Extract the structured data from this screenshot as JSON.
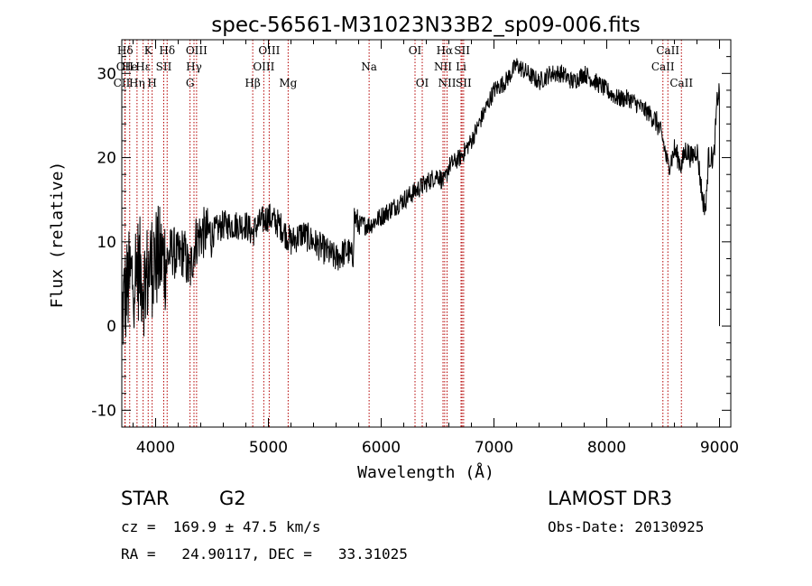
{
  "chart_data": {
    "type": "line",
    "title": "spec-56561-M31023N33B2_sp09-006.fits",
    "xlabel": "Wavelength (Å)",
    "ylabel": "Flux (relative)",
    "xlim": [
      3700,
      9100
    ],
    "ylim": [
      -12,
      34
    ],
    "xticks": [
      4000,
      5000,
      6000,
      7000,
      8000,
      9000
    ],
    "yticks": [
      -10,
      0,
      10,
      20,
      30
    ],
    "spectrum_anchors": {
      "x": [
        3700,
        3720,
        3760,
        3800,
        3850,
        3900,
        3950,
        4000,
        4050,
        4100,
        4150,
        4200,
        4250,
        4300,
        4350,
        4400,
        4500,
        4600,
        4700,
        4800,
        4860,
        4900,
        5000,
        5100,
        5200,
        5300,
        5400,
        5500,
        5600,
        5700,
        5750,
        5760,
        5800,
        5900,
        6000,
        6100,
        6200,
        6300,
        6400,
        6500,
        6560,
        6600,
        6700,
        6800,
        6900,
        7000,
        7100,
        7200,
        7300,
        7400,
        7500,
        7600,
        7700,
        7800,
        7900,
        8000,
        8100,
        8200,
        8300,
        8400,
        8450,
        8500,
        8542,
        8580,
        8600,
        8662,
        8700,
        8750,
        8800,
        8850,
        8880,
        8900,
        8950,
        8980,
        9000
      ],
      "y": [
        1,
        3,
        5,
        6,
        7,
        5,
        7,
        8,
        8,
        8,
        9,
        8,
        9,
        6,
        10,
        11,
        11,
        12,
        12,
        12,
        11,
        12,
        13,
        12,
        10,
        11,
        10,
        9,
        8,
        9,
        8,
        13,
        12,
        12,
        13,
        14,
        15,
        16,
        17,
        18,
        17,
        19,
        20,
        22,
        25,
        28,
        29,
        31,
        30,
        29,
        30,
        30,
        29,
        30,
        29,
        28,
        27,
        27,
        26,
        25,
        24,
        22,
        19,
        20,
        21,
        19,
        21,
        20,
        21,
        15,
        14,
        20,
        20,
        27,
        28
      ]
    },
    "spectral_lines": [
      {
        "label": "Hδ",
        "wavelength": 3730,
        "row": 0
      },
      {
        "label": "OII",
        "wavelength": 3727,
        "row": 1
      },
      {
        "label": "CII",
        "wavelength": 3700,
        "row": 2
      },
      {
        "label": "He",
        "wavelength": 3770,
        "row": 1
      },
      {
        "label": "Hη",
        "wavelength": 3835,
        "row": 2
      },
      {
        "label": "K",
        "wavelength": 3934,
        "row": 0
      },
      {
        "label": "H",
        "wavelength": 3969,
        "row": 2
      },
      {
        "label": "Hε",
        "wavelength": 3889,
        "row": 1
      },
      {
        "label": "SII",
        "wavelength": 4072,
        "row": 1
      },
      {
        "label": "Hδ",
        "wavelength": 4102,
        "row": 0
      },
      {
        "label": "OIII",
        "wavelength": 4363,
        "row": 0
      },
      {
        "label": "Hγ",
        "wavelength": 4340,
        "row": 1
      },
      {
        "label": "G",
        "wavelength": 4305,
        "row": 2
      },
      {
        "label": "Hβ",
        "wavelength": 4861,
        "row": 2
      },
      {
        "label": "OIII",
        "wavelength": 5007,
        "row": 0
      },
      {
        "label": "OIII",
        "wavelength": 4959,
        "row": 1
      },
      {
        "label": "Mg",
        "wavelength": 5175,
        "row": 2
      },
      {
        "label": "Na",
        "wavelength": 5893,
        "row": 1
      },
      {
        "label": "OI",
        "wavelength": 6300,
        "row": 0
      },
      {
        "label": "OI",
        "wavelength": 6364,
        "row": 2
      },
      {
        "label": "Hα",
        "wavelength": 6563,
        "row": 0
      },
      {
        "label": "NII",
        "wavelength": 6548,
        "row": 1
      },
      {
        "label": "NII",
        "wavelength": 6584,
        "row": 2
      },
      {
        "label": "SII",
        "wavelength": 6717,
        "row": 0
      },
      {
        "label": "Li",
        "wavelength": 6708,
        "row": 1
      },
      {
        "label": "SII",
        "wavelength": 6731,
        "row": 2
      },
      {
        "label": "CaII",
        "wavelength": 8542,
        "row": 0
      },
      {
        "label": "CaII",
        "wavelength": 8498,
        "row": 1
      },
      {
        "label": "CaII",
        "wavelength": 8662,
        "row": 2
      }
    ]
  },
  "info": {
    "object_class": "STAR",
    "subclass": "G2",
    "survey": "LAMOST DR3",
    "redshift": "cz =  169.9 ± 47.5 km/s",
    "obs_date": "Obs-Date: 20130925",
    "coords": "RA =   24.90117, DEC =   33.31025"
  },
  "colors": {
    "line": "#000000",
    "marker": "#b40000",
    "axes": "#000000"
  }
}
